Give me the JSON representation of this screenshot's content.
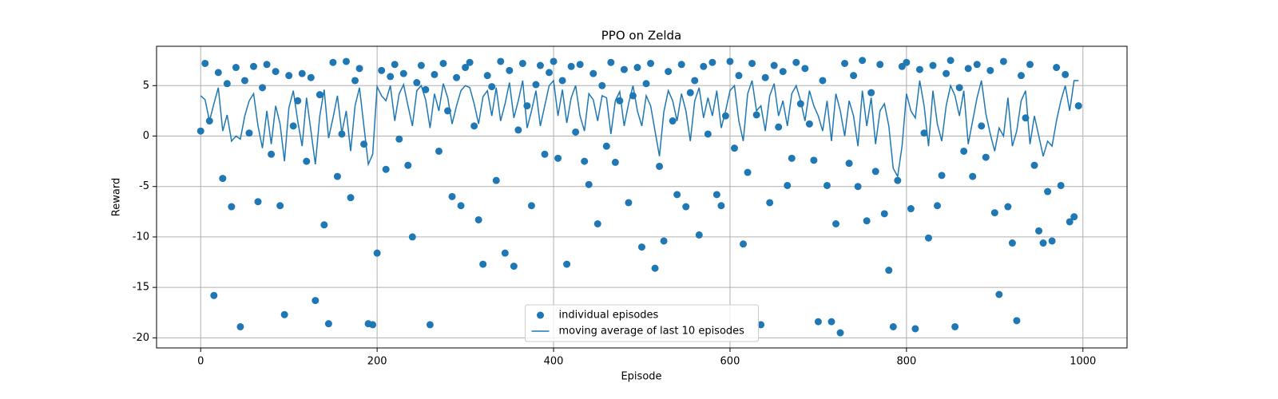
{
  "chart_data": {
    "type": "scatter_line",
    "title": "PPO on Zelda",
    "x_label": "Episode",
    "y_label": "Reward",
    "x": [
      0,
      5,
      10,
      15,
      20,
      25,
      30,
      35,
      40,
      45,
      50,
      55,
      60,
      65,
      70,
      75,
      80,
      85,
      90,
      95,
      100,
      105,
      110,
      115,
      120,
      125,
      130,
      135,
      140,
      145,
      150,
      155,
      160,
      165,
      170,
      175,
      180,
      185,
      190,
      195,
      200,
      205,
      210,
      215,
      220,
      225,
      230,
      235,
      240,
      245,
      250,
      255,
      260,
      265,
      270,
      275,
      280,
      285,
      290,
      295,
      300,
      305,
      310,
      315,
      320,
      325,
      330,
      335,
      340,
      345,
      350,
      355,
      360,
      365,
      370,
      375,
      380,
      385,
      390,
      395,
      400,
      405,
      410,
      415,
      420,
      425,
      430,
      435,
      440,
      445,
      450,
      455,
      460,
      465,
      470,
      475,
      480,
      485,
      490,
      495,
      500,
      505,
      510,
      515,
      520,
      525,
      530,
      535,
      540,
      545,
      550,
      555,
      560,
      565,
      570,
      575,
      580,
      585,
      590,
      595,
      600,
      605,
      610,
      615,
      620,
      625,
      630,
      635,
      640,
      645,
      650,
      655,
      660,
      665,
      670,
      675,
      680,
      685,
      690,
      695,
      700,
      705,
      710,
      715,
      720,
      725,
      730,
      735,
      740,
      745,
      750,
      755,
      760,
      765,
      770,
      775,
      780,
      785,
      790,
      795,
      800,
      805,
      810,
      815,
      820,
      825,
      830,
      835,
      840,
      845,
      850,
      855,
      860,
      865,
      870,
      875,
      880,
      885,
      890,
      895,
      900,
      905,
      910,
      915,
      920,
      925,
      930,
      935,
      940,
      945,
      950,
      955,
      960,
      965,
      970,
      975,
      980,
      985,
      990,
      995
    ],
    "series": [
      {
        "name": "individual episodes",
        "kind": "scatter",
        "color": "#1f77b4",
        "values": [
          0.5,
          7.2,
          1.5,
          -15.8,
          6.3,
          -4.2,
          5.2,
          -7.0,
          6.8,
          -18.9,
          5.5,
          0.3,
          6.9,
          -6.5,
          4.8,
          7.1,
          -1.8,
          6.4,
          -6.9,
          -17.7,
          6.0,
          1.0,
          3.5,
          6.2,
          -2.5,
          5.8,
          -16.3,
          4.1,
          -8.8,
          -18.6,
          7.3,
          -4.0,
          0.2,
          7.4,
          -6.1,
          5.5,
          6.7,
          -0.8,
          -18.6,
          -18.7,
          -11.6,
          6.5,
          -3.3,
          5.9,
          7.1,
          -0.3,
          6.2,
          -2.9,
          -10.0,
          5.3,
          7.0,
          4.6,
          -18.7,
          6.1,
          -1.5,
          7.2,
          2.5,
          -6.0,
          5.8,
          -6.9,
          6.8,
          7.3,
          1.0,
          -8.3,
          -12.7,
          6.0,
          4.9,
          -4.4,
          7.4,
          -11.6,
          6.5,
          -12.9,
          0.6,
          7.2,
          3.0,
          -6.9,
          5.1,
          7.0,
          -1.8,
          6.3,
          7.4,
          -2.2,
          5.5,
          -12.7,
          6.9,
          0.4,
          7.1,
          -2.5,
          -4.8,
          6.2,
          -8.7,
          5.0,
          -1.0,
          7.3,
          -2.6,
          3.5,
          6.6,
          -6.6,
          4.0,
          6.8,
          -11.0,
          5.2,
          7.2,
          -13.1,
          -3.0,
          -10.4,
          6.4,
          1.5,
          -5.8,
          7.1,
          -7.0,
          4.3,
          5.5,
          -9.8,
          6.9,
          0.2,
          7.3,
          -5.8,
          -6.9,
          2.0,
          7.4,
          -1.2,
          6.0,
          -10.7,
          -3.6,
          7.2,
          2.1,
          -18.7,
          5.8,
          -6.6,
          7.0,
          0.9,
          6.4,
          -4.9,
          -2.2,
          7.3,
          3.2,
          6.7,
          1.2,
          -2.4,
          -18.4,
          5.5,
          -4.9,
          -18.4,
          -8.7,
          -19.5,
          7.2,
          -2.7,
          6.0,
          -5.0,
          7.5,
          -8.4,
          4.3,
          -3.5,
          7.1,
          -7.7,
          -13.3,
          -18.9,
          -4.4,
          6.9,
          7.3,
          -7.2,
          -19.1,
          6.6,
          0.3,
          -10.1,
          7.0,
          -6.9,
          -3.9,
          6.2,
          7.5,
          -18.9,
          4.8,
          -1.5,
          6.7,
          -4.0,
          7.1,
          1.0,
          -2.1,
          6.5,
          -7.6,
          -15.7,
          7.4,
          -7.0,
          -10.6,
          -18.3,
          6.0,
          1.8,
          7.1,
          -2.9,
          -9.4,
          -10.6,
          -5.5,
          -10.4,
          6.8,
          -4.9,
          6.1,
          -8.5,
          -8.0,
          3.0
        ]
      },
      {
        "name": "moving average of last 10 episodes",
        "kind": "line",
        "color": "#1f77b4",
        "values": [
          4.0,
          3.6,
          1.5,
          3.2,
          4.8,
          0.5,
          2.1,
          -0.5,
          0.0,
          -0.3,
          2.0,
          3.5,
          4.2,
          1.0,
          -1.2,
          2.5,
          -0.8,
          3.0,
          1.2,
          -2.5,
          2.8,
          4.5,
          1.5,
          -1.0,
          3.8,
          0.5,
          -2.8,
          2.0,
          4.6,
          -0.2,
          1.8,
          4.0,
          0.3,
          2.5,
          -1.5,
          3.0,
          4.8,
          1.0,
          -2.8,
          -1.8,
          4.9,
          4.0,
          3.5,
          5.0,
          1.5,
          4.2,
          5.1,
          3.0,
          1.0,
          4.5,
          5.0,
          3.6,
          0.8,
          4.2,
          2.5,
          5.2,
          3.8,
          1.2,
          3.0,
          4.5,
          5.0,
          4.8,
          3.2,
          1.2,
          3.9,
          4.5,
          2.0,
          4.8,
          1.5,
          3.2,
          5.3,
          1.8,
          3.5,
          5.5,
          0.8,
          2.5,
          4.5,
          1.0,
          3.0,
          5.0,
          5.5,
          2.0,
          4.6,
          1.3,
          3.8,
          5.0,
          2.0,
          0.5,
          4.2,
          3.6,
          1.5,
          4.0,
          3.8,
          0.2,
          3.5,
          4.4,
          1.0,
          3.2,
          5.0,
          2.5,
          1.0,
          4.0,
          3.0,
          0.5,
          -2.0,
          2.4,
          4.5,
          3.5,
          1.5,
          4.2,
          2.5,
          -0.5,
          3.5,
          4.8,
          1.8,
          3.8,
          2.0,
          4.5,
          0.8,
          2.5,
          4.5,
          5.0,
          1.5,
          -0.5,
          4.2,
          5.5,
          2.5,
          3.0,
          0.5,
          4.0,
          5.2,
          2.0,
          3.5,
          1.0,
          4.2,
          5.0,
          3.5,
          1.5,
          4.5,
          3.0,
          2.0,
          0.5,
          3.5,
          -0.5,
          4.2,
          2.5,
          0.0,
          3.5,
          2.0,
          -1.0,
          4.5,
          1.0,
          3.8,
          -0.8,
          2.5,
          3.2,
          1.0,
          -3.2,
          -4.0,
          -1.0,
          4.2,
          2.5,
          1.8,
          5.5,
          3.0,
          -1.0,
          4.5,
          1.2,
          -0.5,
          3.0,
          5.0,
          4.0,
          2.0,
          4.5,
          -0.8,
          1.5,
          3.8,
          5.5,
          2.2,
          0.2,
          -1.5,
          0.8,
          0.0,
          3.8,
          -1.0,
          0.5,
          3.5,
          4.5,
          -0.8,
          2.0,
          0.0,
          -2.0,
          -0.5,
          -1.0,
          1.5,
          3.5,
          5.0,
          2.5,
          5.5,
          5.5
        ]
      }
    ],
    "xlim": [
      -50,
      1050
    ],
    "ylim": [
      -21,
      8.9
    ],
    "xticks": [
      0,
      200,
      400,
      600,
      800,
      1000
    ],
    "yticks": [
      -20,
      -15,
      -10,
      -5,
      0,
      5
    ],
    "grid": true,
    "legend": "lower center"
  }
}
